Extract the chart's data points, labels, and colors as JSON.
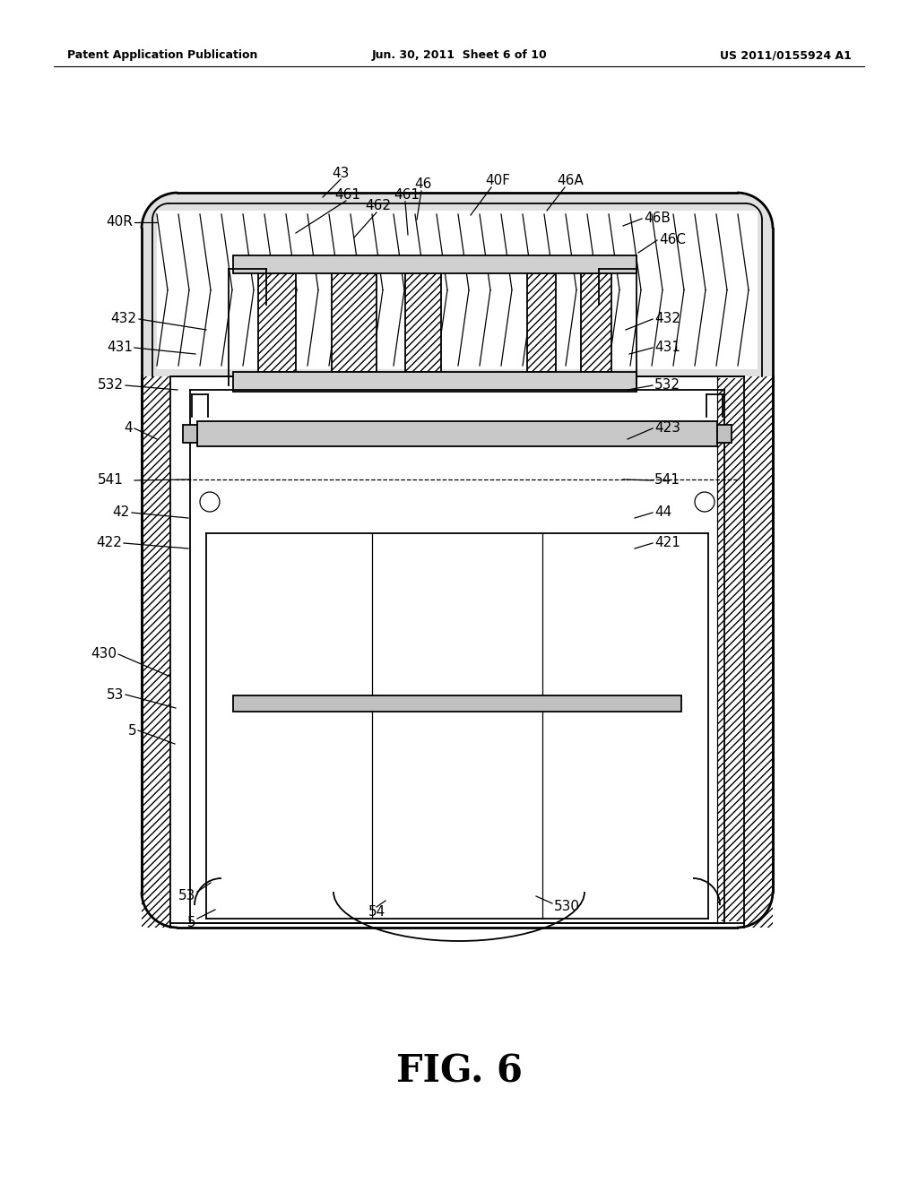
{
  "bg_color": "#ffffff",
  "line_color": "#000000",
  "header_left": "Patent Application Publication",
  "header_center": "Jun. 30, 2011  Sheet 6 of 10",
  "header_right": "US 2011/0155924 A1",
  "fig_caption": "FIG. 6",
  "lw1": 2.0,
  "lw2": 1.3,
  "lw3": 0.9
}
